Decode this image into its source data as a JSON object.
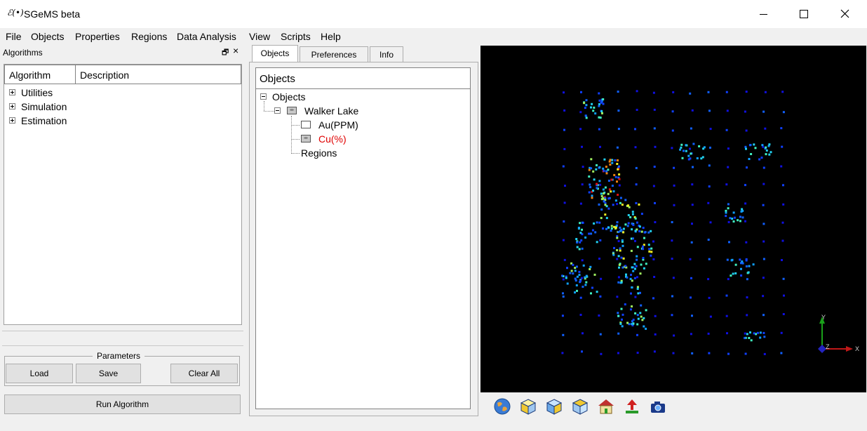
{
  "window": {
    "title": "SGeMS beta",
    "icon_label": "ℰ(•)"
  },
  "menu": [
    "File",
    "Objects",
    "Properties",
    "Regions",
    "Data Analysis",
    "View",
    "Scripts",
    "Help"
  ],
  "algorithms": {
    "title": "Algorithms",
    "columns": [
      "Algorithm",
      "Description"
    ],
    "items": [
      "Utilities",
      "Simulation",
      "Estimation"
    ]
  },
  "parameters": {
    "label": "Parameters",
    "load": "Load",
    "save": "Save",
    "clear_all": "Clear All",
    "run": "Run Algorithm"
  },
  "tabs": [
    "Objects",
    "Preferences",
    "Info"
  ],
  "objects_tree": {
    "header": "Objects",
    "root": "Objects",
    "grid": "Walker Lake",
    "properties": [
      {
        "name": "Au(PPM)",
        "selected": false
      },
      {
        "name": "Cu(%)",
        "selected": true
      }
    ],
    "regions": "Regions"
  },
  "axes": {
    "x": "X",
    "y": "Y",
    "z": "Z"
  },
  "colors": {
    "selected_text": "#e00000",
    "viewer_bg": "#000000"
  },
  "toolbar_icons": [
    "globe-icon",
    "cube-yellow-icon",
    "cube-blue-icon",
    "cube-light-icon",
    "home-icon",
    "pin-icon",
    "camera-icon"
  ]
}
